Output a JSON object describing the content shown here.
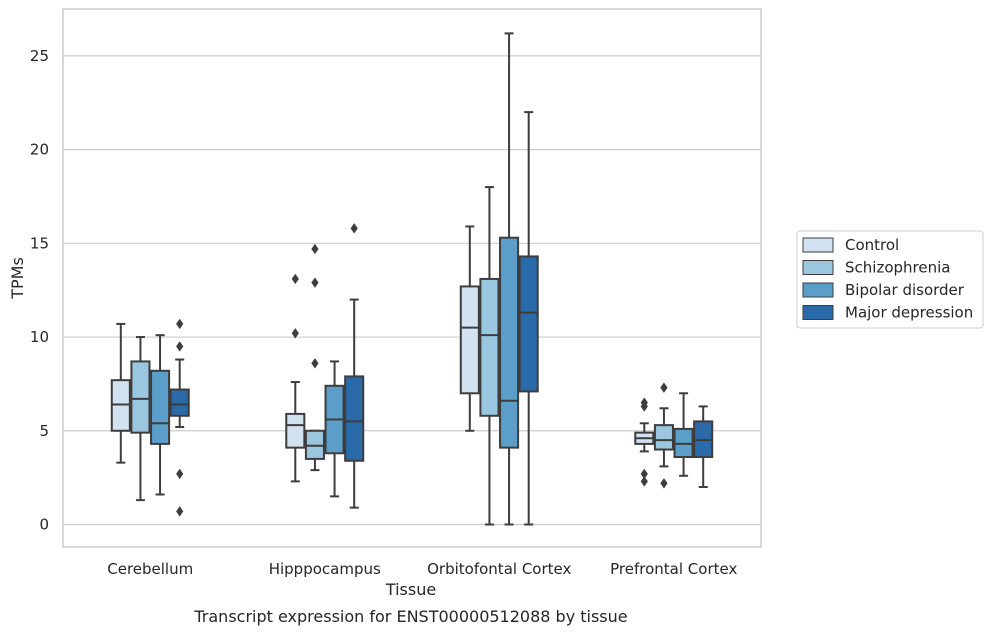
{
  "chart_data": {
    "type": "box",
    "xlabel": "Tissue",
    "ylabel": "TPMs",
    "caption": "Transcript expression for ENST00000512088 by tissue",
    "ylim": [
      -1.2,
      27.5
    ],
    "yticks": [
      0,
      5,
      10,
      15,
      20,
      25
    ],
    "grid": true,
    "legend_position": "right",
    "categories": [
      "Cerebellum",
      "Hipppocampus",
      "Orbitofontal Cortex",
      "Prefrontal Cortex"
    ],
    "series": [
      {
        "name": "Control",
        "color": "#d2e2f1",
        "boxes": [
          {
            "whisker_low": 3.3,
            "q1": 5.0,
            "median": 6.4,
            "q3": 7.7,
            "whisker_high": 10.7,
            "outliers": []
          },
          {
            "whisker_low": 2.3,
            "q1": 4.1,
            "median": 5.3,
            "q3": 5.9,
            "whisker_high": 7.6,
            "outliers": [
              10.2,
              13.1
            ]
          },
          {
            "whisker_low": 5.0,
            "q1": 7.0,
            "median": 10.5,
            "q3": 12.7,
            "whisker_high": 15.9,
            "outliers": []
          },
          {
            "whisker_low": 3.9,
            "q1": 4.3,
            "median": 4.6,
            "q3": 4.9,
            "whisker_high": 5.4,
            "outliers": [
              2.3,
              2.7,
              6.3,
              6.5
            ]
          }
        ]
      },
      {
        "name": "Schizophrenia",
        "color": "#9ac6df",
        "boxes": [
          {
            "whisker_low": 1.3,
            "q1": 4.9,
            "median": 6.7,
            "q3": 8.7,
            "whisker_high": 10.0,
            "outliers": []
          },
          {
            "whisker_low": 2.9,
            "q1": 3.5,
            "median": 4.2,
            "q3": 5.0,
            "whisker_high": 5.0,
            "outliers": [
              8.6,
              12.9,
              14.7
            ]
          },
          {
            "whisker_low": 0.0,
            "q1": 5.8,
            "median": 10.1,
            "q3": 13.1,
            "whisker_high": 18.0,
            "outliers": []
          },
          {
            "whisker_low": 3.1,
            "q1": 4.0,
            "median": 4.5,
            "q3": 5.3,
            "whisker_high": 6.2,
            "outliers": [
              2.2,
              7.3
            ]
          }
        ]
      },
      {
        "name": "Bipolar disorder",
        "color": "#5a9ec9",
        "boxes": [
          {
            "whisker_low": 1.6,
            "q1": 4.3,
            "median": 5.4,
            "q3": 8.2,
            "whisker_high": 10.1,
            "outliers": []
          },
          {
            "whisker_low": 1.5,
            "q1": 3.8,
            "median": 5.6,
            "q3": 7.4,
            "whisker_high": 8.7,
            "outliers": []
          },
          {
            "whisker_low": 0.0,
            "q1": 4.1,
            "median": 6.6,
            "q3": 15.3,
            "whisker_high": 26.2,
            "outliers": []
          },
          {
            "whisker_low": 2.6,
            "q1": 3.6,
            "median": 4.3,
            "q3": 5.1,
            "whisker_high": 7.0,
            "outliers": []
          }
        ]
      },
      {
        "name": "Major depression",
        "color": "#2a6aa9",
        "boxes": [
          {
            "whisker_low": 5.2,
            "q1": 5.8,
            "median": 6.4,
            "q3": 7.2,
            "whisker_high": 8.8,
            "outliers": [
              0.7,
              2.7,
              9.5,
              10.7
            ]
          },
          {
            "whisker_low": 0.9,
            "q1": 3.4,
            "median": 5.5,
            "q3": 7.9,
            "whisker_high": 12.0,
            "outliers": [
              15.8
            ]
          },
          {
            "whisker_low": 0.0,
            "q1": 7.1,
            "median": 11.3,
            "q3": 14.3,
            "whisker_high": 22.0,
            "outliers": []
          },
          {
            "whisker_low": 2.0,
            "q1": 3.6,
            "median": 4.5,
            "q3": 5.5,
            "whisker_high": 6.3,
            "outliers": []
          }
        ]
      }
    ]
  }
}
